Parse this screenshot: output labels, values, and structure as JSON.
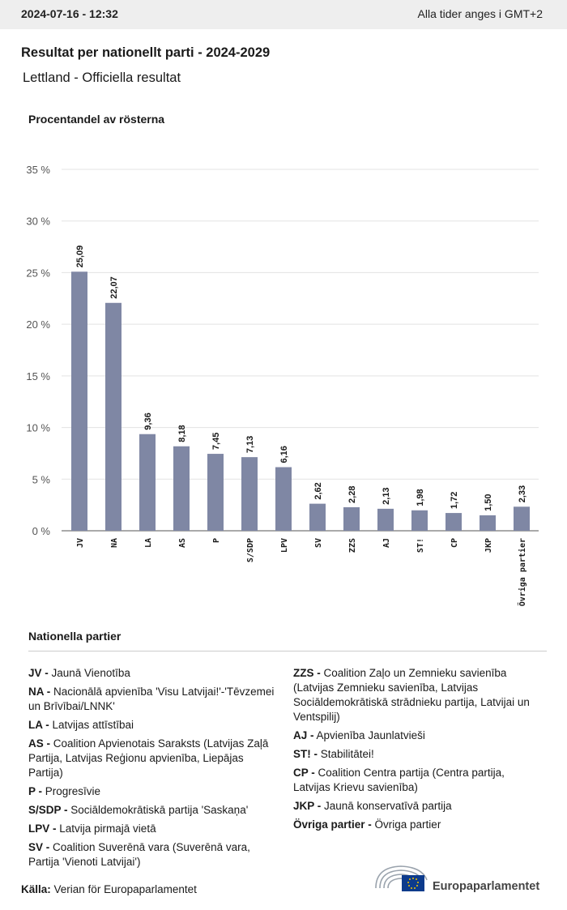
{
  "header": {
    "timestamp": "2024-07-16 - 12:32",
    "timezone_note": "Alla tider anges i GMT+2"
  },
  "title": "Resultat per nationellt parti - 2024-2029",
  "subtitle": "Lettland - Officiella resultat",
  "colors": {
    "bar": "#7f87a4",
    "grid": "#e3e3e3",
    "axis": "#555555"
  },
  "chart_data": {
    "type": "bar",
    "ylabel": "Procentandel av rösterna",
    "ylim": [
      0,
      35
    ],
    "yticks": [
      0,
      5,
      10,
      15,
      20,
      25,
      30,
      35
    ],
    "ytick_labels": [
      "0 %",
      "5 %",
      "10 %",
      "15 %",
      "20 %",
      "25 %",
      "30 %",
      "35 %"
    ],
    "grid": true,
    "categories": [
      "JV",
      "NA",
      "LA",
      "AS",
      "P",
      "S/SDP",
      "LPV",
      "SV",
      "ZZS",
      "AJ",
      "ST!",
      "CP",
      "JKP",
      "Övriga partier"
    ],
    "values": [
      25.09,
      22.07,
      9.36,
      8.18,
      7.45,
      7.13,
      6.16,
      2.62,
      2.28,
      2.13,
      1.98,
      1.72,
      1.5,
      2.33
    ],
    "value_labels": [
      "25,09",
      "22,07",
      "9,36",
      "8,18",
      "7,45",
      "7,13",
      "6,16",
      "2,62",
      "2,28",
      "2,13",
      "1,98",
      "1,72",
      "1,50",
      "2,33"
    ]
  },
  "legend": {
    "title": "Nationella partier",
    "left": [
      {
        "abbr": "JV -",
        "name": "Jaunā Vienotība"
      },
      {
        "abbr": "NA -",
        "name": "Nacionālā apvienība 'Visu Latvijai!'-'Tēvzemei un Brīvībai/LNNK'"
      },
      {
        "abbr": "LA -",
        "name": "Latvijas attīstībai"
      },
      {
        "abbr": "AS -",
        "name": "Coalition Apvienotais Saraksts (Latvijas Zaļā Partija, Latvijas Reģionu apvienība, Liepājas Partija)"
      },
      {
        "abbr": "P -",
        "name": "Progresīvie"
      },
      {
        "abbr": "S/SDP -",
        "name": "Sociāldemokrātiskā partija 'Saskaņa'"
      },
      {
        "abbr": "LPV -",
        "name": "Latvija pirmajā vietā"
      },
      {
        "abbr": "SV -",
        "name": "Coalition Suverēnā vara (Suverēnā vara, Partija 'Vienoti Latvijai')"
      }
    ],
    "right": [
      {
        "abbr": "ZZS -",
        "name": "Coalition Zaļo un Zemnieku savienība (Latvijas Zemnieku savienība, Latvijas Sociāldemokrātiskā strādnieku partija, Latvijai un Ventspilij)"
      },
      {
        "abbr": "AJ -",
        "name": "Apvienība Jaunlatvieši"
      },
      {
        "abbr": "ST! -",
        "name": "Stabilitātei!"
      },
      {
        "abbr": "CP -",
        "name": "Coalition Centra partija (Centra partija, Latvijas Krievu savienība)"
      },
      {
        "abbr": "JKP -",
        "name": "Jaunā konservatīvā partija"
      },
      {
        "abbr": "Övriga partier -",
        "name": "Övriga partier"
      }
    ]
  },
  "footer": {
    "source_label": "Källa:",
    "source_text": "Verian för Europaparlamentet",
    "logo_text": "Europaparlamentet"
  }
}
